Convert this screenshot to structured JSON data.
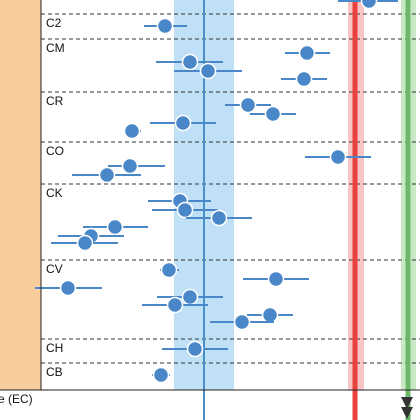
{
  "chart_data": {
    "type": "scatter",
    "title": "",
    "xlabel": "",
    "ylabel_fragment": "e (EC)",
    "rows": [
      {
        "group": "C2",
        "label": "C2",
        "points": [
          {
            "x": 165,
            "lo": 144,
            "hi": 187
          }
        ]
      },
      {
        "group": "CM",
        "label": "CM",
        "points": [
          {
            "x": 307,
            "lo": 285,
            "hi": 330
          },
          {
            "x": 190,
            "lo": 156,
            "hi": 223
          },
          {
            "x": 208,
            "lo": 174,
            "hi": 242
          },
          {
            "x": 304,
            "lo": 281,
            "hi": 327
          }
        ]
      },
      {
        "group": "CR",
        "label": "CR",
        "points": [
          {
            "x": 248,
            "lo": 225,
            "hi": 271
          },
          {
            "x": 273,
            "lo": 250,
            "hi": 296
          },
          {
            "x": 183,
            "lo": 150,
            "hi": 216
          },
          {
            "x": 132,
            "lo": 124,
            "hi": 141
          }
        ]
      },
      {
        "group": "CO",
        "label": "CO",
        "points": [
          {
            "x": 338,
            "lo": 305,
            "hi": 371
          },
          {
            "x": 130,
            "lo": 108,
            "hi": 165
          },
          {
            "x": 107,
            "lo": 72,
            "hi": 141
          }
        ]
      },
      {
        "group": "CK",
        "label": "CK",
        "points": [
          {
            "x": 180,
            "lo": 148,
            "hi": 211
          },
          {
            "x": 185,
            "lo": 152,
            "hi": 218
          },
          {
            "x": 219,
            "lo": 186,
            "hi": 252
          },
          {
            "x": 115,
            "lo": 83,
            "hi": 148
          },
          {
            "x": 91,
            "lo": 58,
            "hi": 124
          },
          {
            "x": 85,
            "lo": 51,
            "hi": 118
          }
        ]
      },
      {
        "group": "CV",
        "label": "CV",
        "points": [
          {
            "x": 169,
            "lo": 160,
            "hi": 179
          },
          {
            "x": 276,
            "lo": 243,
            "hi": 309
          },
          {
            "x": 68,
            "lo": 35,
            "hi": 102
          },
          {
            "x": 190,
            "lo": 157,
            "hi": 223
          },
          {
            "x": 175,
            "lo": 142,
            "hi": 208
          },
          {
            "x": 270,
            "lo": 247,
            "hi": 293
          },
          {
            "x": 242,
            "lo": 210,
            "hi": 274
          }
        ]
      },
      {
        "group": "CH",
        "label": "CH",
        "points": [
          {
            "x": 195,
            "lo": 162,
            "hi": 228
          }
        ]
      },
      {
        "group": "CB",
        "label": "CB",
        "points": [
          {
            "x": 161,
            "lo": 152,
            "hi": 170
          }
        ]
      }
    ],
    "top_point": {
      "x": 369,
      "lo": 338,
      "hi": 398
    },
    "reference_lines": [
      {
        "name": "blue",
        "x": 204,
        "band": [
          174,
          234
        ],
        "color": "#4a90c8",
        "band_color": "#bfe0f7"
      },
      {
        "name": "red",
        "x": 355,
        "band": [
          348,
          364
        ],
        "color": "#e8403c",
        "band_color": "#f8c4c4"
      },
      {
        "name": "green",
        "x": 408,
        "band": [
          401,
          416
        ],
        "color": "#6db86a",
        "band_color": "#c9e8c5"
      }
    ],
    "grid": true,
    "colors": {
      "point": "#4a87c8",
      "point_stroke": "#ffffff",
      "errorbar": "#4a87c8",
      "label_panel": "#f9cc9c",
      "grid": "#333333"
    }
  }
}
